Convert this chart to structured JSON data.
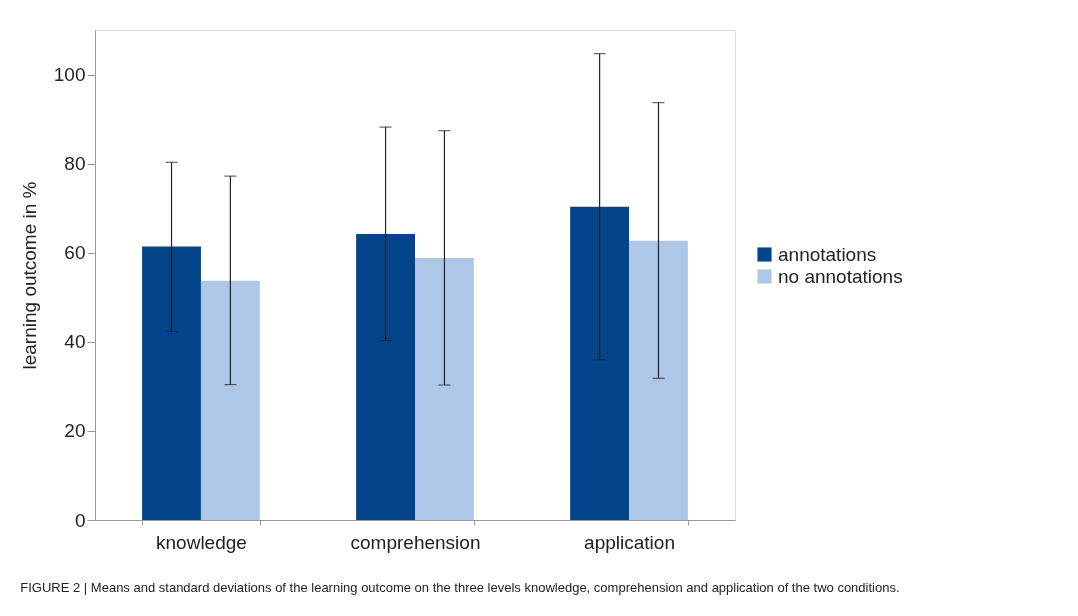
{
  "chart_data": {
    "type": "bar",
    "categories": [
      "knowledge",
      "comprehension",
      "application"
    ],
    "series": [
      {
        "name": "annotations",
        "color": "#03458a",
        "values": [
          61.4,
          64.2,
          70.3
        ],
        "errors": [
          [
            42.3,
            80.3
          ],
          [
            40.3,
            88.2
          ],
          [
            36.0,
            104.7
          ]
        ]
      },
      {
        "name": "no annotations",
        "color": "#aec6e7",
        "values": [
          53.7,
          58.8,
          62.7
        ],
        "errors": [
          [
            30.4,
            77.2
          ],
          [
            30.3,
            87.4
          ],
          [
            31.8,
            93.7
          ]
        ]
      }
    ],
    "ylabel": "learning outcome in %",
    "ylim": [
      0,
      110
    ],
    "yticks": [
      0,
      20,
      40,
      60,
      80,
      100
    ],
    "grid": false,
    "legend": "right",
    "annotations": [
      "FIGURE 2 | Means and standard deviations of the learning outcome on the three levels knowledge, comprehension and application of the two conditions."
    ]
  }
}
